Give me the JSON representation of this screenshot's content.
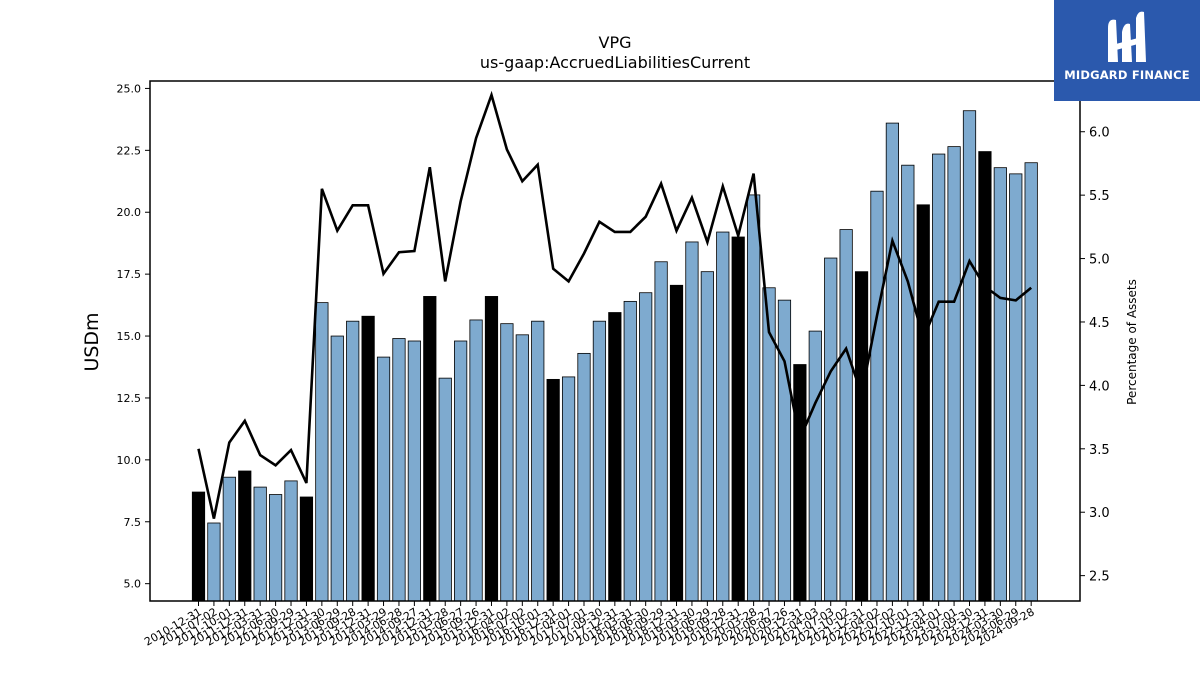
{
  "chart_data": {
    "type": "bar",
    "title": "VPG",
    "subtitle": "us-gaap:AccruedLiabilitiesCurrent",
    "ylabel": "USDm",
    "y2label": "Percentage of Assets",
    "ylim": [
      4.3,
      25.3
    ],
    "y2lim": [
      2.3,
      6.4
    ],
    "yticks": [
      "5.0",
      "7.5",
      "10.0",
      "12.5",
      "15.0",
      "17.5",
      "20.0",
      "22.5",
      "25.0"
    ],
    "y2ticks": [
      "2.5",
      "3.0",
      "3.5",
      "4.0",
      "4.5",
      "5.0",
      "5.5",
      "6.0"
    ],
    "categories": [
      "2010-12-31",
      "2011-07-02",
      "2011-10-01",
      "2011-12-31",
      "2012-03-31",
      "2012-06-30",
      "2012-09-29",
      "2012-12-31",
      "2013-03-30",
      "2013-06-29",
      "2013-09-28",
      "2013-12-31",
      "2014-03-29",
      "2014-06-28",
      "2014-09-27",
      "2014-12-31",
      "2015-03-28",
      "2015-06-27",
      "2015-09-26",
      "2015-12-31",
      "2016-04-02",
      "2016-07-02",
      "2016-10-01",
      "2016-12-31",
      "2017-04-01",
      "2017-07-01",
      "2017-09-30",
      "2017-12-31",
      "2018-03-31",
      "2018-06-30",
      "2018-09-29",
      "2018-12-31",
      "2019-03-30",
      "2019-06-29",
      "2019-09-28",
      "2019-12-31",
      "2020-03-28",
      "2020-06-27",
      "2020-09-26",
      "2020-12-31",
      "2021-04-03",
      "2021-07-03",
      "2021-10-02",
      "2021-12-31",
      "2022-04-02",
      "2022-07-02",
      "2022-10-01",
      "2022-12-31",
      "2023-04-01",
      "2023-07-01",
      "2023-09-30",
      "2023-12-31",
      "2024-03-30",
      "2024-06-29",
      "2024-09-28"
    ],
    "series": [
      {
        "values": [
          8.7,
          7.45,
          9.3,
          9.55,
          8.9,
          8.6,
          9.15,
          8.5,
          16.35,
          15.0,
          15.6,
          15.8,
          14.15,
          14.9,
          14.8,
          16.6,
          13.3,
          14.8,
          15.65,
          16.6,
          15.5,
          15.05,
          15.6,
          13.25,
          13.35,
          14.3,
          15.6,
          15.95,
          16.4,
          16.75,
          18.0,
          17.05,
          18.8,
          17.6,
          19.2,
          19.0,
          20.7,
          16.95,
          16.45,
          13.85,
          15.2,
          18.15,
          19.3,
          17.6,
          20.85,
          23.6,
          21.9,
          20.3,
          22.35,
          22.65,
          24.1,
          22.45,
          21.8,
          21.55,
          22.0
        ],
        "year_end": [
          true,
          false,
          false,
          true,
          false,
          false,
          false,
          true,
          false,
          false,
          false,
          true,
          false,
          false,
          false,
          true,
          false,
          false,
          false,
          true,
          false,
          false,
          false,
          true,
          false,
          false,
          false,
          true,
          false,
          false,
          false,
          true,
          false,
          false,
          false,
          true,
          false,
          false,
          false,
          true,
          false,
          false,
          false,
          true,
          false,
          false,
          false,
          true,
          false,
          false,
          false,
          true,
          false,
          false,
          false
        ]
      },
      {
        "axis": "right",
        "values": [
          3.5,
          2.95,
          3.55,
          3.72,
          3.45,
          3.37,
          3.49,
          3.23,
          5.55,
          5.22,
          5.42,
          5.42,
          4.88,
          5.05,
          5.06,
          5.72,
          4.82,
          5.45,
          5.95,
          6.29,
          5.86,
          5.61,
          5.74,
          4.92,
          4.82,
          5.04,
          5.29,
          5.21,
          5.21,
          5.33,
          5.59,
          5.22,
          5.48,
          5.13,
          5.57,
          5.18,
          5.67,
          4.42,
          4.19,
          3.58,
          3.86,
          4.11,
          4.29,
          3.93,
          4.55,
          5.14,
          4.82,
          4.37,
          4.66,
          4.66,
          4.98,
          4.78,
          4.69,
          4.67,
          4.77
        ]
      }
    ],
    "colors": {
      "bar": "#7eaacf",
      "year_end_bar": "#000000",
      "line": "#000000",
      "edge": "#000000"
    }
  },
  "logo": {
    "text": "MIDGARD FINANCE",
    "bg": "#2b59ad"
  }
}
